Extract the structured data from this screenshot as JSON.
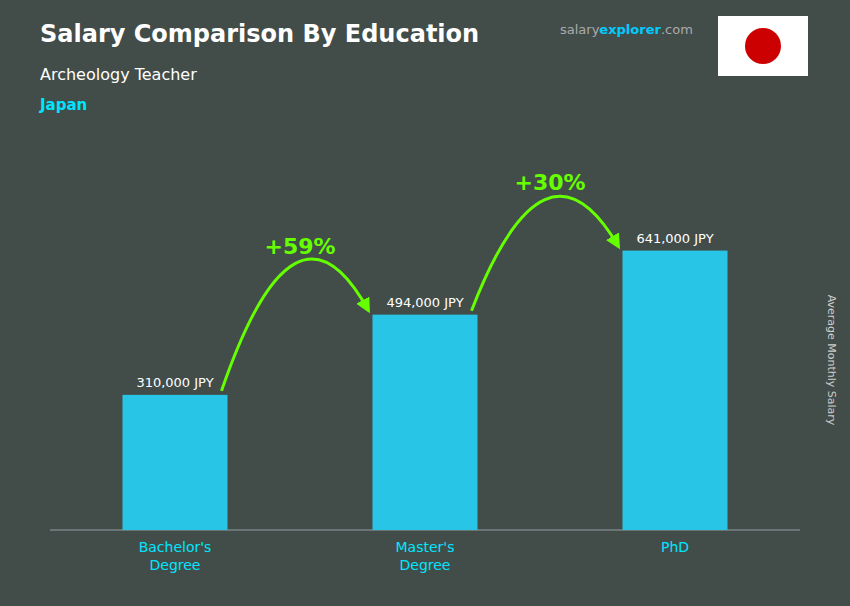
{
  "chart_data": {
    "type": "bar",
    "title": "Salary Comparison By Education",
    "subtitle": "Archeology Teacher",
    "country": "Japan",
    "source_parts": [
      "salary",
      "explorer",
      ".com"
    ],
    "ylabel": "Average Monthly Salary",
    "categories": [
      "Bachelor's\nDegree",
      "Master's\nDegree",
      "PhD"
    ],
    "values": [
      310000,
      494000,
      641000
    ],
    "value_labels": [
      "310,000 JPY",
      "494,000 JPY",
      "641,000 JPY"
    ],
    "color": "#29c5e6",
    "ylim": [
      0,
      780000
    ],
    "tick_labels": "x",
    "data_labels": true,
    "grid": false,
    "annotations": [
      {
        "text": "+59%",
        "from": "Bachelor's\nDegree",
        "to": "Master's\nDegree",
        "color": "#66ff00"
      },
      {
        "text": "+30%",
        "from": "Master's\nDegree",
        "to": "PhD",
        "color": "#66ff00"
      }
    ]
  }
}
